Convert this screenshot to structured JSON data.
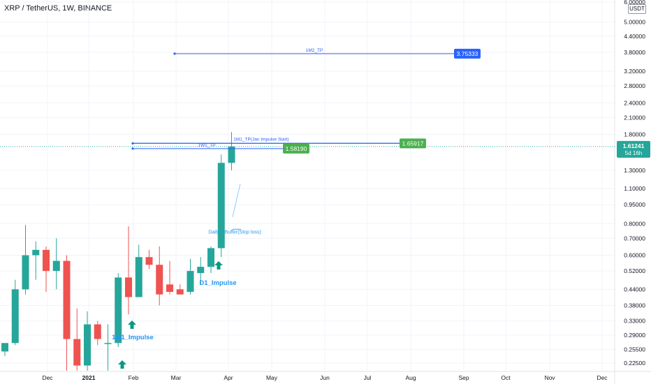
{
  "header": {
    "symbol_title": "XRP / TetherUS, 1W, BINANCE",
    "currency": "USDT"
  },
  "colors": {
    "up": "#26a69a",
    "down": "#ef5350",
    "line": "#2962ff",
    "grid": "#f0f3fa"
  },
  "chart_data": {
    "type": "candlestick",
    "x_tick_labels": [
      "Dec",
      "2021",
      "Feb",
      "Mar",
      "Apr",
      "May",
      "Jun",
      "Jul",
      "Aug",
      "Sep",
      "Oct",
      "Nov",
      "Dec"
    ],
    "y_scale": "log",
    "y_tick_labels": [
      "6.00000",
      "5.00000",
      "4.40000",
      "3.80000",
      "3.20000",
      "2.80000",
      "2.40000",
      "2.10000",
      "1.80000",
      "1.30000",
      "1.10000",
      "0.95000",
      "0.80000",
      "0.70000",
      "0.60000",
      "0.52000",
      "0.44000",
      "0.38000",
      "0.33000",
      "0.29000",
      "0.25500",
      "0.22500"
    ],
    "y_ticks": [
      6.0,
      5.0,
      4.4,
      3.8,
      3.2,
      2.8,
      2.4,
      2.1,
      1.8,
      1.3,
      1.1,
      0.95,
      0.8,
      0.7,
      0.6,
      0.52,
      0.44,
      0.38,
      0.33,
      0.29,
      0.255,
      0.225
    ],
    "candles": [
      {
        "o": 0.25,
        "h": 0.265,
        "l": 0.24,
        "c": 0.27
      },
      {
        "o": 0.27,
        "h": 0.48,
        "l": 0.265,
        "c": 0.44
      },
      {
        "o": 0.44,
        "h": 0.79,
        "l": 0.42,
        "c": 0.6
      },
      {
        "o": 0.6,
        "h": 0.68,
        "l": 0.48,
        "c": 0.63
      },
      {
        "o": 0.63,
        "h": 0.65,
        "l": 0.43,
        "c": 0.52
      },
      {
        "o": 0.52,
        "h": 0.7,
        "l": 0.44,
        "c": 0.57
      },
      {
        "o": 0.57,
        "h": 0.6,
        "l": 0.21,
        "c": 0.28
      },
      {
        "o": 0.28,
        "h": 0.37,
        "l": 0.21,
        "c": 0.22
      },
      {
        "o": 0.22,
        "h": 0.36,
        "l": 0.21,
        "c": 0.32
      },
      {
        "o": 0.32,
        "h": 0.33,
        "l": 0.265,
        "c": 0.28
      },
      {
        "o": 0.27,
        "h": 0.32,
        "l": 0.21,
        "c": 0.27
      },
      {
        "o": 0.27,
        "h": 0.51,
        "l": 0.26,
        "c": 0.49
      },
      {
        "o": 0.49,
        "h": 0.78,
        "l": 0.35,
        "c": 0.41
      },
      {
        "o": 0.41,
        "h": 0.66,
        "l": 0.41,
        "c": 0.59
      },
      {
        "o": 0.59,
        "h": 0.63,
        "l": 0.53,
        "c": 0.55
      },
      {
        "o": 0.55,
        "h": 0.65,
        "l": 0.38,
        "c": 0.42
      },
      {
        "o": 0.46,
        "h": 0.57,
        "l": 0.42,
        "c": 0.43
      },
      {
        "o": 0.44,
        "h": 0.46,
        "l": 0.42,
        "c": 0.42
      },
      {
        "o": 0.43,
        "h": 0.58,
        "l": 0.42,
        "c": 0.52
      },
      {
        "o": 0.51,
        "h": 0.59,
        "l": 0.46,
        "c": 0.54
      },
      {
        "o": 0.54,
        "h": 0.65,
        "l": 0.51,
        "c": 0.64
      },
      {
        "o": 0.64,
        "h": 1.5,
        "l": 0.59,
        "c": 1.39
      },
      {
        "o": 1.39,
        "h": 1.84,
        "l": 1.3,
        "c": 1.61241
      }
    ],
    "lines": [
      {
        "label": "1M2_TP",
        "price": 3.75333,
        "badge": "3.75333"
      },
      {
        "label": "1M1_TP(Jan Impulse Start)",
        "price": 1.65917,
        "badge": "1.65917"
      },
      {
        "label": "1W1_TP",
        "price": 1.5819,
        "badge": "1.58190"
      }
    ],
    "annotations": [
      {
        "label": "D1_Impulse"
      },
      {
        "label": "1M1_Impulse"
      },
      {
        "label": "Daily1_Buffer(Stop loss)"
      }
    ],
    "last_price": {
      "value": 1.61241,
      "label": "1.61241",
      "countdown": "5d 16h"
    }
  }
}
